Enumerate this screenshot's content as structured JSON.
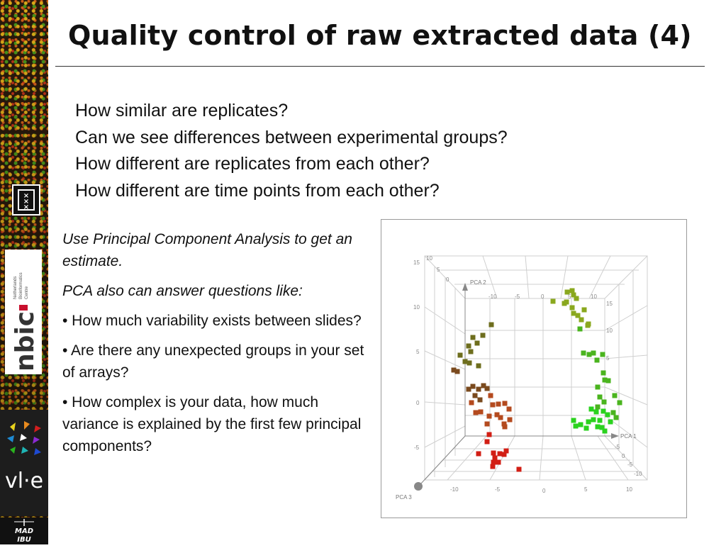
{
  "slide": {
    "title": "Quality control of raw extracted data (4)",
    "questions": [
      "How similar are replicates?",
      "Can we see differences between  experimental groups?",
      "How different are replicates from each other?",
      "How different are time points from each other?"
    ],
    "intro": "Use Principal Component Analysis to get an estimate.",
    "subintro": "PCA also can answer questions like:",
    "bullets": [
      "• How much variability exists between slides?",
      "• Are there any unexpected groups in your set of arrays?",
      "• How complex is your data, how much variance is explained by the first few principal components?"
    ]
  },
  "logos": {
    "nbic_text": "nbic",
    "nbic_caption": [
      "Netherlands",
      "Bioinformatics",
      "Centre"
    ],
    "vle_text": "vl·e",
    "mad_text": [
      "MAD",
      "IBU"
    ]
  },
  "chart_data": {
    "type": "scatter",
    "dimensions": 3,
    "axis_labels": [
      "PCA 1",
      "PCA 2",
      "PCA 3"
    ],
    "x_ticks": [
      "-10",
      "-5",
      "0",
      "5",
      "10"
    ],
    "front_y_ticks": [
      "15",
      "10",
      "5",
      "0",
      "-5"
    ],
    "side_ticks": [
      "15",
      "10",
      "5",
      "0",
      "-5",
      "-10"
    ],
    "top_ticks": [
      "-10",
      "-5",
      "0",
      "5",
      "10"
    ],
    "back_ticks": [
      "10",
      "5",
      "0"
    ],
    "colors": {
      "darkgreen": "#6e6e1e",
      "brown": "#7a4a1e",
      "rust": "#b44a1e",
      "red": "#d21e14",
      "olive": "#8aa81e",
      "green": "#4ab41e",
      "brightgreen": "#2ad21e"
    },
    "points": {
      "darkgreen": [
        [
          692,
          457
        ],
        [
          680,
          472
        ],
        [
          666,
          475
        ],
        [
          672,
          483
        ],
        [
          660,
          487
        ],
        [
          663,
          495
        ],
        [
          648,
          500
        ],
        [
          655,
          509
        ],
        [
          661,
          511
        ],
        [
          674,
          515
        ]
      ],
      "brown": [
        [
          644,
          523
        ],
        [
          639,
          521
        ],
        [
          660,
          548
        ],
        [
          666,
          544
        ],
        [
          674,
          548
        ],
        [
          681,
          543
        ],
        [
          669,
          557
        ],
        [
          676,
          563
        ],
        [
          686,
          547
        ]
      ],
      "rust": [
        [
          664,
          567
        ],
        [
          691,
          557
        ],
        [
          694,
          570
        ],
        [
          702,
          569
        ],
        [
          711,
          568
        ],
        [
          670,
          581
        ],
        [
          677,
          580
        ],
        [
          700,
          584
        ],
        [
          705,
          588
        ],
        [
          710,
          597
        ],
        [
          717,
          576
        ],
        [
          718,
          591
        ],
        [
          689,
          586
        ],
        [
          686,
          597
        ],
        [
          711,
          601
        ]
      ],
      "red": [
        [
          689,
          612
        ],
        [
          686,
          622
        ],
        [
          674,
          639
        ],
        [
          695,
          638
        ],
        [
          697,
          645
        ],
        [
          704,
          639
        ],
        [
          710,
          640
        ],
        [
          702,
          651
        ],
        [
          695,
          651
        ],
        [
          694,
          657
        ],
        [
          731,
          661
        ],
        [
          713,
          635
        ]
      ],
      "olive": [
        [
          799,
          411
        ],
        [
          806,
          409
        ],
        [
          808,
          415
        ],
        [
          812,
          420
        ],
        [
          798,
          425
        ],
        [
          806,
          433
        ],
        [
          823,
          436
        ],
        [
          808,
          441
        ],
        [
          814,
          444
        ],
        [
          819,
          450
        ],
        [
          828,
          458
        ],
        [
          779,
          424
        ],
        [
          795,
          427
        ],
        [
          829,
          456
        ]
      ],
      "green": [
        [
          817,
          463
        ],
        [
          822,
          497
        ],
        [
          830,
          499
        ],
        [
          836,
          497
        ],
        [
          841,
          507
        ],
        [
          849,
          499
        ],
        [
          852,
          535
        ],
        [
          850,
          525
        ],
        [
          857,
          536
        ],
        [
          842,
          545
        ],
        [
          845,
          559
        ],
        [
          851,
          566
        ],
        [
          842,
          573
        ],
        [
          866,
          557
        ],
        [
          873,
          567
        ],
        [
          864,
          581
        ],
        [
          868,
          588
        ]
      ],
      "brightgreen": [
        [
          833,
          576
        ],
        [
          840,
          580
        ],
        [
          850,
          579
        ],
        [
          856,
          584
        ],
        [
          836,
          591
        ],
        [
          845,
          592
        ],
        [
          829,
          594
        ],
        [
          826,
          603
        ],
        [
          848,
          602
        ],
        [
          860,
          594
        ],
        [
          808,
          592
        ],
        [
          811,
          600
        ],
        [
          818,
          598
        ],
        [
          842,
          601
        ],
        [
          852,
          607
        ]
      ]
    }
  }
}
